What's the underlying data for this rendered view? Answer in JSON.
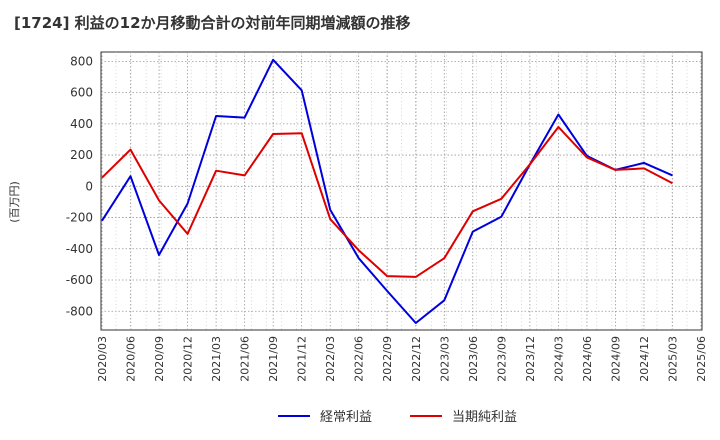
{
  "chart_data": {
    "type": "line",
    "title": "[1724]  利益の12か月移動合計の対前年同期増減額の推移",
    "ylabel": "(百万円)",
    "xlabel": "",
    "ylim": [
      -920,
      860
    ],
    "y_ticks": [
      800,
      600,
      400,
      200,
      0,
      -200,
      -400,
      -600,
      -800
    ],
    "x": [
      "2020/03",
      "2020/06",
      "2020/09",
      "2020/12",
      "2021/03",
      "2021/06",
      "2021/09",
      "2021/12",
      "2022/03",
      "2022/06",
      "2022/09",
      "2022/12",
      "2023/03",
      "2023/06",
      "2023/09",
      "2023/12",
      "2024/03",
      "2024/06",
      "2024/09",
      "2024/12",
      "2025/03",
      "2025/06"
    ],
    "grid": true,
    "legend_position": "bottom-center",
    "series": [
      {
        "name": "経常利益",
        "color": "#0000dd",
        "values": [
          -220,
          65,
          -440,
          -110,
          450,
          440,
          810,
          615,
          -150,
          -460,
          -670,
          -875,
          -730,
          -290,
          -195,
          140,
          460,
          195,
          105,
          150,
          70,
          null
        ]
      },
      {
        "name": "当期純利益",
        "color": "#dd0000",
        "values": [
          55,
          235,
          -90,
          -305,
          100,
          70,
          335,
          340,
          -210,
          -410,
          -575,
          -580,
          -460,
          -160,
          -80,
          140,
          380,
          185,
          105,
          115,
          20,
          null
        ]
      }
    ]
  }
}
